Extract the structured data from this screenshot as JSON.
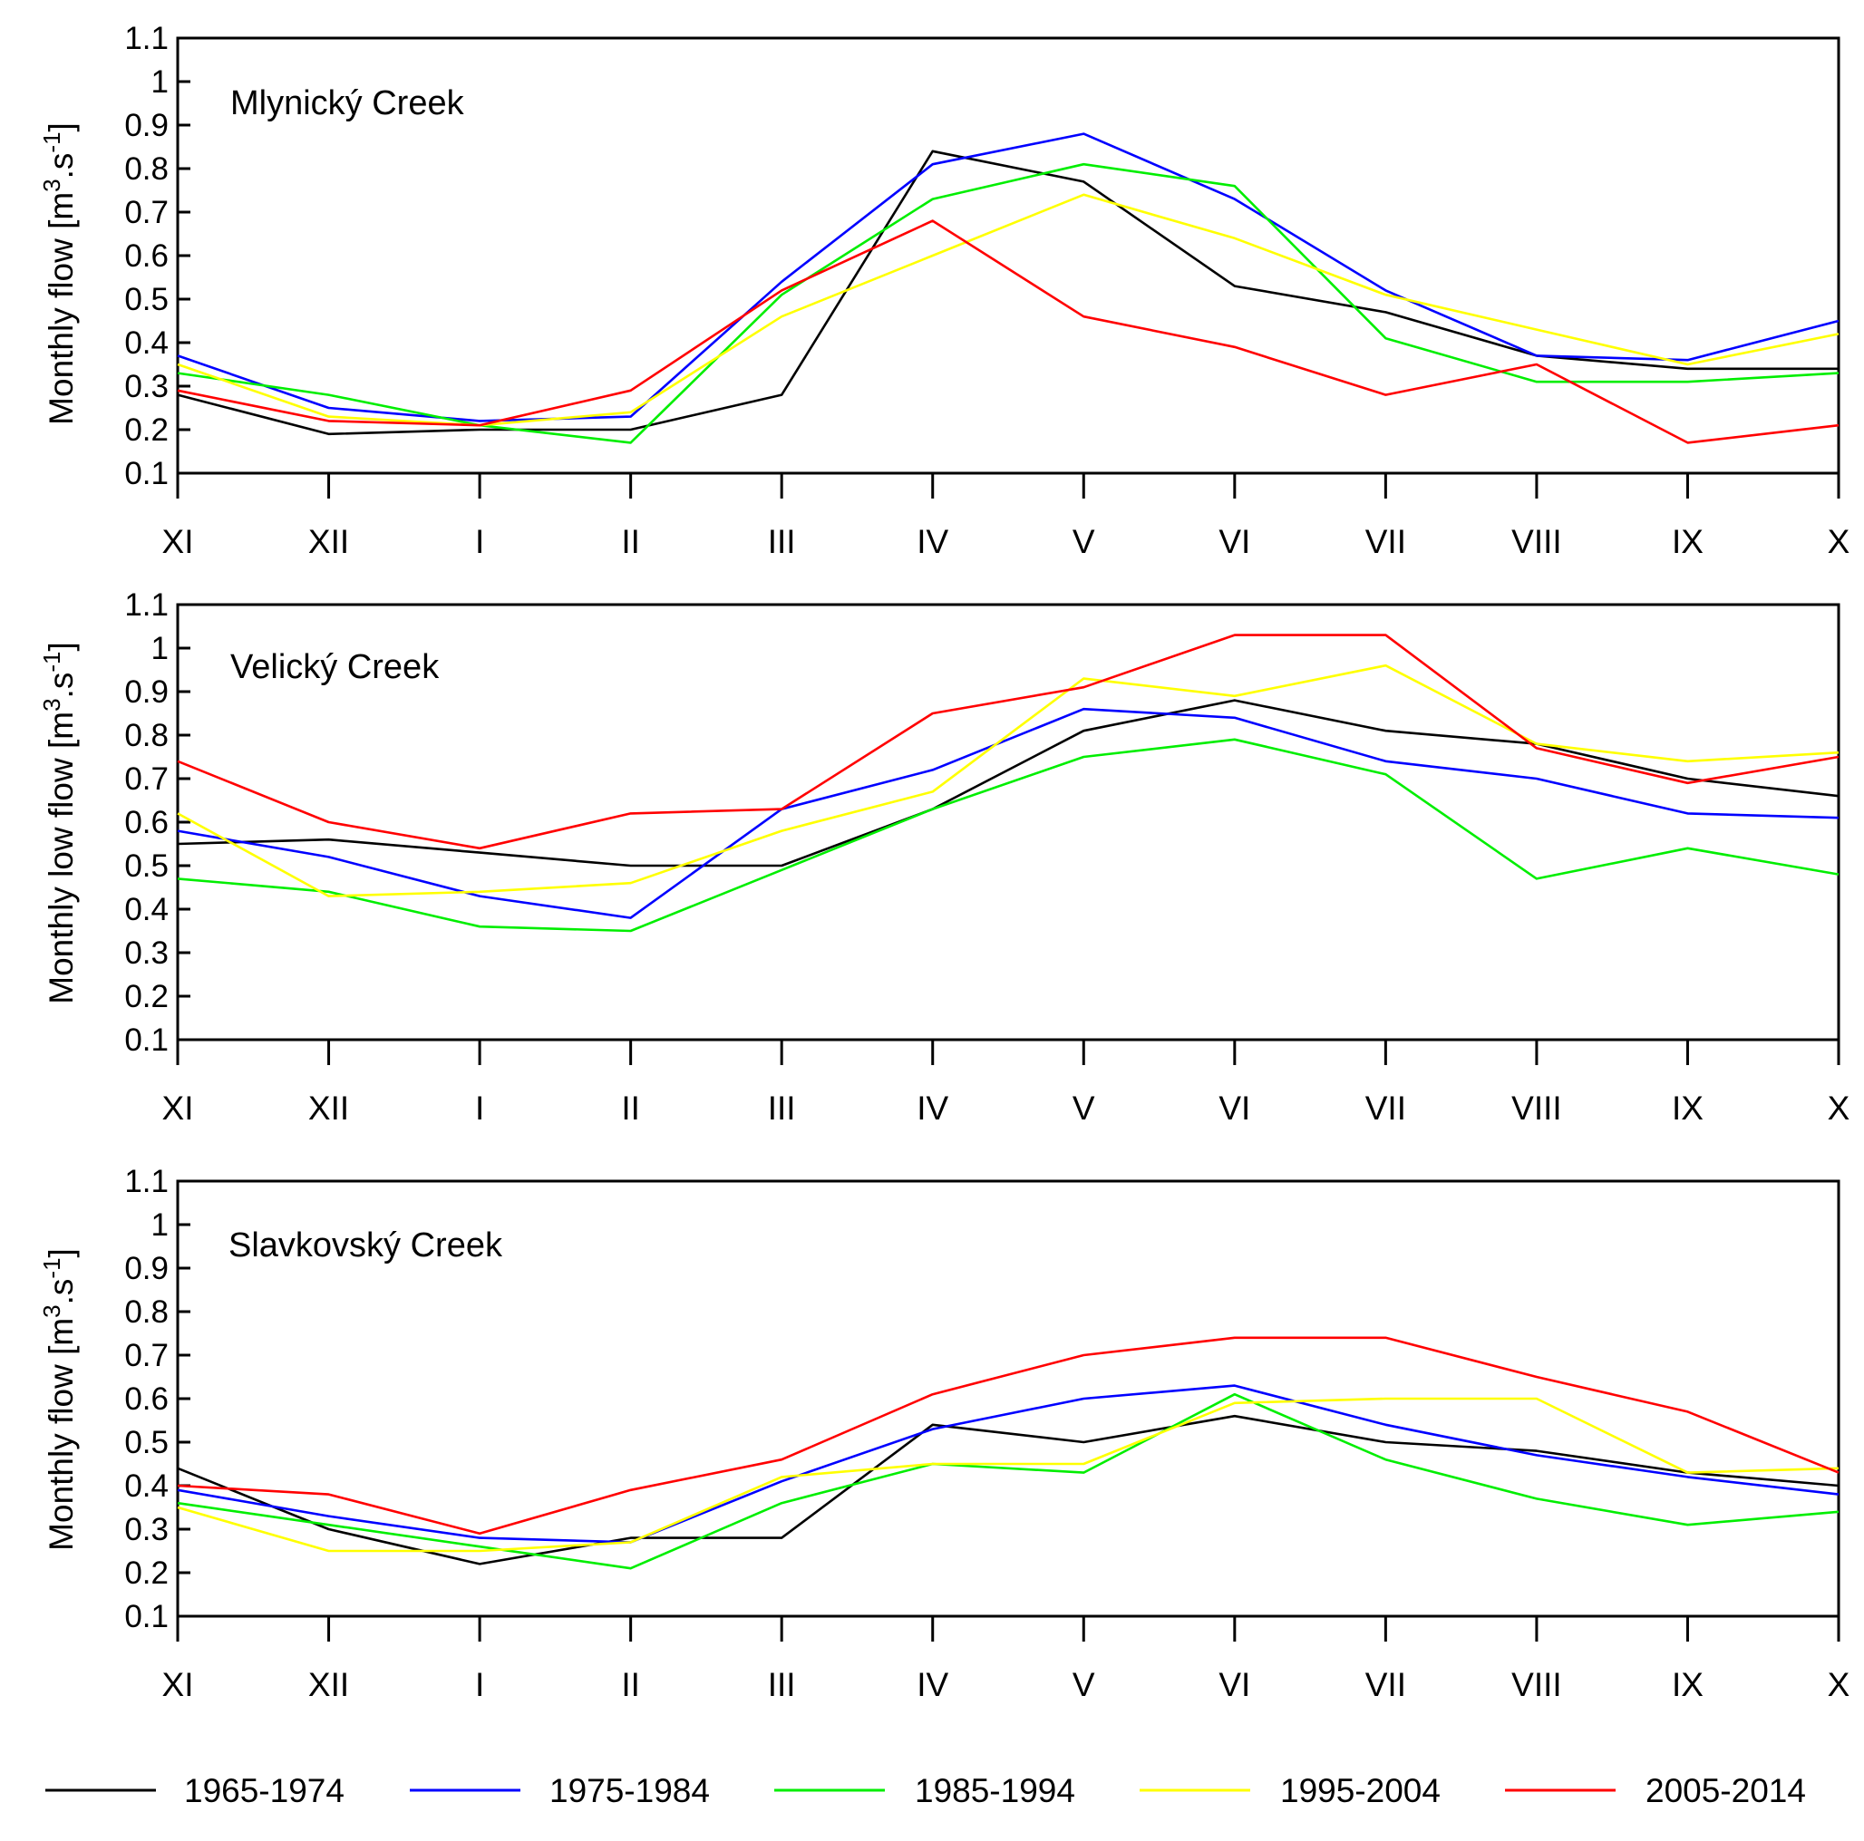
{
  "legend": [
    {
      "name": "1965-1974",
      "color": "#000000"
    },
    {
      "name": "1975-1984",
      "color": "#0000ff"
    },
    {
      "name": "1985-1994",
      "color": "#00ee00"
    },
    {
      "name": "1995-2004",
      "color": "#ffff00"
    },
    {
      "name": "2005-2014",
      "color": "#ff0000"
    }
  ],
  "chart_data": [
    {
      "type": "line",
      "title": "Mlynický Creek",
      "ylabel": {
        "text": "Monthly flow [m",
        "sup1": "3",
        "mid": ".s",
        "sup2": "-1",
        "end": "]"
      },
      "xlabel": "",
      "ylim": [
        0.1,
        1.1
      ],
      "yticks": [
        "0.1",
        "0.2",
        "0.3",
        "0.4",
        "0.5",
        "0.6",
        "0.7",
        "0.8",
        "0.9",
        "1",
        "1.1"
      ],
      "categories": [
        "XI",
        "XII",
        "I",
        "II",
        "III",
        "IV",
        "V",
        "VI",
        "VII",
        "VIII",
        "IX",
        "X"
      ],
      "series": [
        {
          "name": "1965-1974",
          "values": [
            0.28,
            0.19,
            0.2,
            0.2,
            0.28,
            0.84,
            0.77,
            0.53,
            0.47,
            0.37,
            0.34,
            0.34
          ]
        },
        {
          "name": "1975-1984",
          "values": [
            0.37,
            0.25,
            0.22,
            0.23,
            0.54,
            0.81,
            0.88,
            0.73,
            0.52,
            0.37,
            0.36,
            0.45
          ]
        },
        {
          "name": "1985-1994",
          "values": [
            0.33,
            0.28,
            0.21,
            0.17,
            0.51,
            0.73,
            0.81,
            0.76,
            0.41,
            0.31,
            0.31,
            0.33
          ]
        },
        {
          "name": "1995-2004",
          "values": [
            0.35,
            0.23,
            0.21,
            0.24,
            0.46,
            0.6,
            0.74,
            0.64,
            0.51,
            0.43,
            0.35,
            0.42
          ]
        },
        {
          "name": "2005-2014",
          "values": [
            0.29,
            0.22,
            0.21,
            0.29,
            0.52,
            0.68,
            0.46,
            0.39,
            0.28,
            0.35,
            0.17,
            0.21
          ]
        }
      ]
    },
    {
      "type": "line",
      "title": "Velický Creek",
      "ylabel": {
        "text": "Monthly low flow [m",
        "sup1": "3",
        "mid": ".s",
        "sup2": "-1",
        "end": "]"
      },
      "xlabel": "",
      "ylim": [
        0.1,
        1.1
      ],
      "yticks": [
        "0.1",
        "0.2",
        "0.3",
        "0.4",
        "0.5",
        "0.6",
        "0.7",
        "0.8",
        "0.9",
        "1",
        "1.1"
      ],
      "categories": [
        "XI",
        "XII",
        "I",
        "II",
        "III",
        "IV",
        "V",
        "VI",
        "VII",
        "VIII",
        "IX",
        "X"
      ],
      "series": [
        {
          "name": "1965-1974",
          "values": [
            0.55,
            0.56,
            0.53,
            0.5,
            0.5,
            0.63,
            0.81,
            0.88,
            0.81,
            0.78,
            0.7,
            0.66
          ]
        },
        {
          "name": "1975-1984",
          "values": [
            0.58,
            0.52,
            0.43,
            0.38,
            0.63,
            0.72,
            0.86,
            0.84,
            0.74,
            0.7,
            0.62,
            0.61
          ]
        },
        {
          "name": "1985-1994",
          "values": [
            0.47,
            0.44,
            0.36,
            0.35,
            0.49,
            0.63,
            0.75,
            0.79,
            0.71,
            0.47,
            0.54,
            0.48
          ]
        },
        {
          "name": "1995-2004",
          "values": [
            0.62,
            0.43,
            0.44,
            0.46,
            0.58,
            0.67,
            0.93,
            0.89,
            0.96,
            0.78,
            0.74,
            0.76
          ]
        },
        {
          "name": "2005-2014",
          "values": [
            0.74,
            0.6,
            0.54,
            0.62,
            0.63,
            0.85,
            0.91,
            1.03,
            1.03,
            0.77,
            0.69,
            0.75
          ]
        }
      ]
    },
    {
      "type": "line",
      "title": "Slavkovský Creek",
      "ylabel": {
        "text": "Monthly flow [m",
        "sup1": "3",
        "mid": ".s",
        "sup2": "-1",
        "end": "]"
      },
      "xlabel": "",
      "ylim": [
        0.1,
        1.1
      ],
      "yticks": [
        "0.1",
        "0.2",
        "0.3",
        "0.4",
        "0.5",
        "0.6",
        "0.7",
        "0.8",
        "0.9",
        "1",
        "1.1"
      ],
      "categories": [
        "XI",
        "XII",
        "I",
        "II",
        "III",
        "IV",
        "V",
        "VI",
        "VII",
        "VIII",
        "IX",
        "X"
      ],
      "series": [
        {
          "name": "1965-1974",
          "values": [
            0.44,
            0.3,
            0.22,
            0.28,
            0.28,
            0.54,
            0.5,
            0.56,
            0.5,
            0.48,
            0.43,
            0.4
          ]
        },
        {
          "name": "1975-1984",
          "values": [
            0.39,
            0.33,
            0.28,
            0.27,
            0.41,
            0.53,
            0.6,
            0.63,
            0.54,
            0.47,
            0.42,
            0.38
          ]
        },
        {
          "name": "1985-1994",
          "values": [
            0.36,
            0.31,
            0.26,
            0.21,
            0.36,
            0.45,
            0.43,
            0.61,
            0.46,
            0.37,
            0.31,
            0.34
          ]
        },
        {
          "name": "1995-2004",
          "values": [
            0.35,
            0.25,
            0.25,
            0.27,
            0.42,
            0.45,
            0.45,
            0.59,
            0.6,
            0.6,
            0.43,
            0.44
          ]
        },
        {
          "name": "2005-2014",
          "values": [
            0.4,
            0.38,
            0.29,
            0.39,
            0.46,
            0.61,
            0.7,
            0.74,
            0.74,
            0.65,
            0.57,
            0.43
          ]
        }
      ]
    }
  ]
}
